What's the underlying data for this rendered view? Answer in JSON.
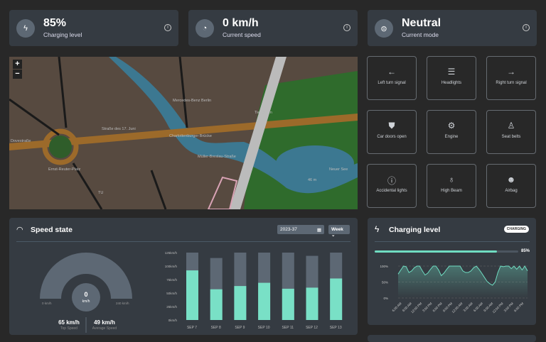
{
  "stats": [
    {
      "value": "85%",
      "label": "Charging level",
      "icon": "battery-charging-icon"
    },
    {
      "value": "0 km/h",
      "label": "Current speed",
      "icon": "speedometer-icon"
    },
    {
      "value": "Neutral",
      "label": "Current mode",
      "icon": "steering-mode-icon"
    }
  ],
  "map": {
    "labels": [
      "Mercedes-Benz Berlin",
      "Charlottenburger Brücke",
      "Straße des 17. Juni",
      "Ernst-Reuter-Platz",
      "Tiergarten",
      "Dovestraße",
      "Neuer See",
      "46 m",
      "TU",
      "Müller-Breslau-Straße"
    ],
    "zoom_in": "+",
    "zoom_out": "−"
  },
  "tiles": [
    {
      "label": "Left turn signal",
      "glyph": "←",
      "icon": "arrow-left-icon"
    },
    {
      "label": "Headlights",
      "glyph": "☰",
      "icon": "headlights-icon"
    },
    {
      "label": "Right turn signal",
      "glyph": "→",
      "icon": "arrow-right-icon"
    },
    {
      "label": "Car doors open",
      "glyph": "⛊",
      "icon": "car-door-icon"
    },
    {
      "label": "Engine",
      "glyph": "⚙",
      "icon": "engine-icon"
    },
    {
      "label": "Seat belts",
      "glyph": "♙",
      "icon": "seat-belt-icon"
    },
    {
      "label": "Accidental lights",
      "glyph": "ⓘ",
      "icon": "warning-circle-icon"
    },
    {
      "label": "High Beam",
      "glyph": "♁",
      "icon": "bulb-icon"
    },
    {
      "label": "Airbag",
      "glyph": "☻",
      "icon": "airbag-icon"
    }
  ],
  "speed": {
    "title": "Speed state",
    "date": "2023-37",
    "period": "Week",
    "gauge_value": "0",
    "gauge_unit": "km/h",
    "gauge_min": "0 km/h",
    "gauge_max": "240 km/h",
    "top_speed": "65 km/h",
    "top_speed_label": "Top Speed",
    "avg_speed": "49 km/h",
    "avg_speed_label": "Average Speed"
  },
  "charging": {
    "title": "Charging level",
    "badge": "CHARGING",
    "level": 85,
    "level_label": "85%",
    "accent": "#6fdcc1"
  },
  "chart_data": [
    {
      "type": "bar",
      "categories": [
        "SEP 7",
        "SEP 8",
        "SEP 9",
        "SEP 10",
        "SEP 11",
        "SEP 12",
        "SEP 13"
      ],
      "series": [
        {
          "values": [
            125,
            115,
            125,
            125,
            125,
            119,
            125
          ]
        },
        {
          "values": [
            92,
            57,
            63,
            69,
            58,
            60,
            77
          ]
        }
      ],
      "yticks": [
        "0km/h",
        "25km/h",
        "50km/h",
        "75km/h",
        "100km/h",
        "125km/h"
      ],
      "ylim": [
        0,
        125
      ]
    },
    {
      "type": "area",
      "xticks": [
        "6:00 AM",
        "9:00 AM",
        "12:00 PM",
        "3:00 PM",
        "6:00 PM",
        "9:00 PM",
        "12:00 AM",
        "3:00 AM",
        "6:00 AM",
        "9:00 AM",
        "12:00 PM",
        "3:00 PM",
        "6:00 PM"
      ],
      "values": [
        75,
        88,
        100,
        98,
        80,
        85,
        95,
        100,
        100,
        85,
        72,
        78,
        90,
        100,
        100,
        88,
        70,
        78,
        90,
        100,
        100,
        100,
        100,
        100,
        85,
        80,
        80,
        85,
        95,
        100,
        90,
        78,
        65,
        52,
        45,
        40,
        50,
        80,
        100,
        98,
        100,
        100,
        92,
        100,
        90,
        100,
        88,
        100,
        85
      ],
      "yticks": [
        "0%",
        "50%",
        "100%"
      ],
      "ylim": [
        0,
        100
      ]
    }
  ]
}
